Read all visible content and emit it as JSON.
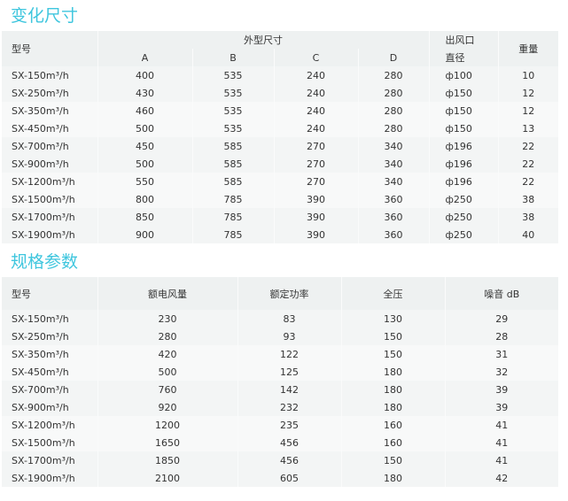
{
  "section1": {
    "title": "变化尺寸",
    "headers": {
      "model": "型号",
      "dims": "外型尺寸",
      "a": "A",
      "b": "B",
      "c": "C",
      "d": "D",
      "outlet1": "出风口",
      "outlet2": "直径",
      "weight": "重量"
    },
    "rows": [
      [
        "SX-150m³/h",
        "400",
        "535",
        "240",
        "280",
        "ф100",
        "10"
      ],
      [
        "SX-250m³/h",
        "430",
        "535",
        "240",
        "280",
        "ф150",
        "12"
      ],
      [
        "SX-350m³/h",
        "460",
        "535",
        "240",
        "280",
        "ф150",
        "12"
      ],
      [
        "SX-450m³/h",
        "500",
        "535",
        "240",
        "280",
        "ф150",
        "13"
      ],
      [
        "SX-700m³/h",
        "450",
        "585",
        "270",
        "340",
        "ф196",
        "22"
      ],
      [
        "SX-900m³/h",
        "500",
        "585",
        "270",
        "340",
        "ф196",
        "22"
      ],
      [
        "SX-1200m³/h",
        "550",
        "585",
        "270",
        "340",
        "ф196",
        "22"
      ],
      [
        "SX-1500m³/h",
        "800",
        "785",
        "390",
        "360",
        "ф250",
        "38"
      ],
      [
        "SX-1700m³/h",
        "850",
        "785",
        "390",
        "360",
        "ф250",
        "38"
      ],
      [
        "SX-1900m³/h",
        "900",
        "785",
        "390",
        "360",
        "ф250",
        "40"
      ]
    ]
  },
  "section2": {
    "title": "规格参数",
    "headers": [
      "型号",
      "额电风量",
      "额定功率",
      "全压",
      "噪音 dB"
    ],
    "rows": [
      [
        "SX-150m³/h",
        "230",
        "83",
        "130",
        "29"
      ],
      [
        "SX-250m³/h",
        "280",
        "93",
        "150",
        "28"
      ],
      [
        "SX-350m³/h",
        "420",
        "122",
        "150",
        "31"
      ],
      [
        "SX-450m³/h",
        "500",
        "125",
        "180",
        "32"
      ],
      [
        "SX-700m³/h",
        "760",
        "142",
        "180",
        "39"
      ],
      [
        "SX-900m³/h",
        "920",
        "232",
        "180",
        "39"
      ],
      [
        "SX-1200m³/h",
        "1200",
        "235",
        "160",
        "41"
      ],
      [
        "SX-1500m³/h",
        "1650",
        "456",
        "160",
        "41"
      ],
      [
        "SX-1700m³/h",
        "1850",
        "456",
        "150",
        "41"
      ],
      [
        "SX-1900m³/h",
        "2100",
        "605",
        "180",
        "42"
      ]
    ]
  }
}
